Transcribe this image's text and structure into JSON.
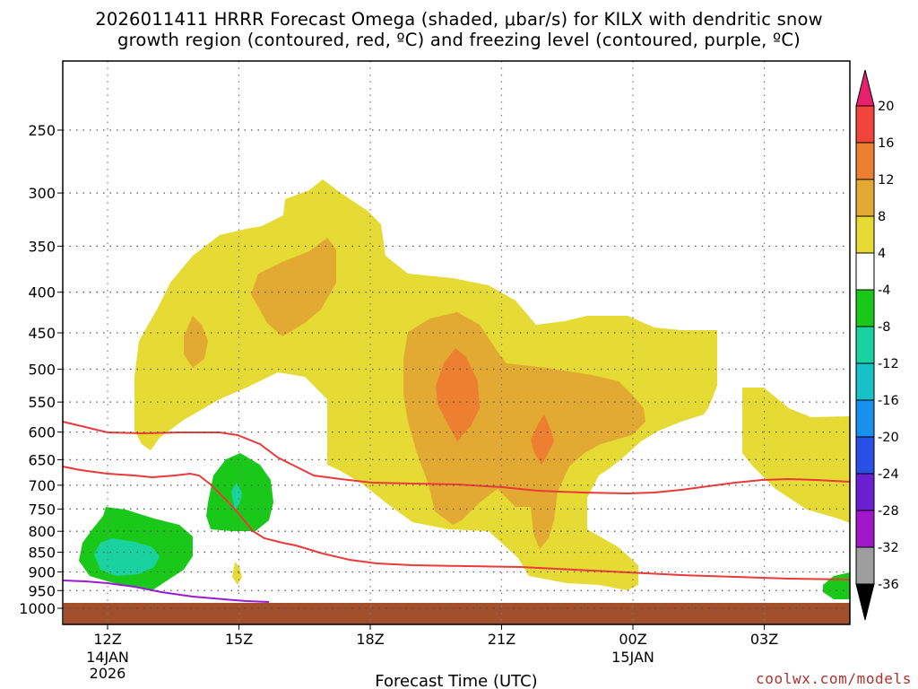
{
  "title": {
    "line1": "2026011411 HRRR Forecast Omega (shaded, μbar/s) for KILX with dendritic snow",
    "line2": "growth region (contoured, red, ºC) and freezing level (contoured, purple, ºC)"
  },
  "chart_data": {
    "type": "contour",
    "xlabel": "Forecast Time (UTC)",
    "ylabel": "",
    "y_scale": "log-pressure",
    "y_ticks": [
      250,
      300,
      350,
      400,
      450,
      500,
      550,
      600,
      650,
      700,
      750,
      800,
      850,
      900,
      950,
      1000
    ],
    "x_range_hours": [
      10.6,
      28.6
    ],
    "x_ticks": [
      {
        "hour": 12,
        "label": "12Z",
        "sub1": "14JAN",
        "sub2": "2026"
      },
      {
        "hour": 15,
        "label": "15Z",
        "sub1": "",
        "sub2": ""
      },
      {
        "hour": 18,
        "label": "18Z",
        "sub1": "",
        "sub2": ""
      },
      {
        "hour": 21,
        "label": "21Z",
        "sub1": "",
        "sub2": ""
      },
      {
        "hour": 24,
        "label": "00Z",
        "sub1": "15JAN",
        "sub2": ""
      },
      {
        "hour": 27,
        "label": "03Z",
        "sub1": "",
        "sub2": ""
      }
    ],
    "grid": true,
    "colorbar": {
      "levels": [
        "20",
        "16",
        "12",
        "8",
        "4",
        "-4",
        "-8",
        "-12",
        "-16",
        "-20",
        "-24",
        "-28",
        "-32",
        "-36"
      ],
      "colors": [
        "#e8206e",
        "#f0443c",
        "#ec8030",
        "#e3aa33",
        "#e6da35",
        "#ffffff",
        "#1ac81a",
        "#1ad2a0",
        "#18c0c8",
        "#1890ee",
        "#2850e6",
        "#6a20d0",
        "#a016c8",
        "#9e9e9e",
        "#000000"
      ]
    },
    "ground_color": "#a24f2c",
    "dgz_line_color": "#ea3a3a",
    "freezing_line_color": "#9a1ad2",
    "credit": "coolwx.com/models"
  }
}
